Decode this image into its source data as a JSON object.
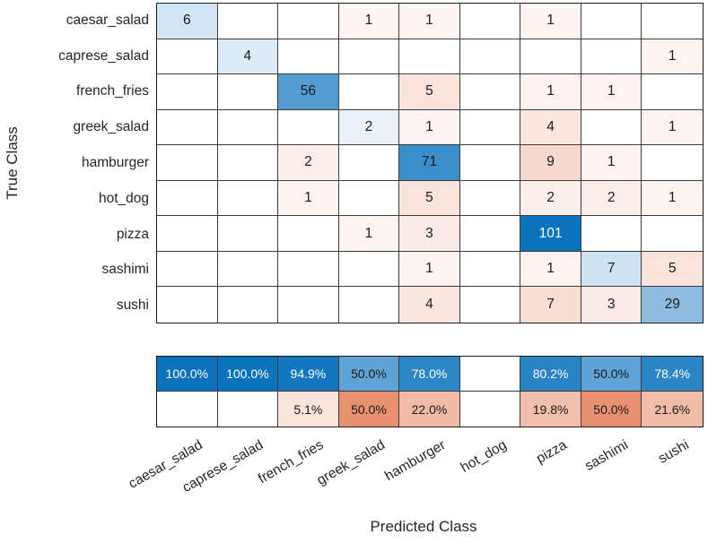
{
  "chart_data": {
    "type": "heatmap",
    "chart_subtype": "confusion_matrix",
    "title": "",
    "xlabel": "Predicted Class",
    "ylabel": "True Class",
    "classes": [
      "caesar_salad",
      "caprese_salad",
      "french_fries",
      "greek_salad",
      "hamburger",
      "hot_dog",
      "pizza",
      "sashimi",
      "sushi"
    ],
    "matrix": [
      [
        6,
        0,
        0,
        1,
        1,
        0,
        1,
        0,
        0
      ],
      [
        0,
        4,
        0,
        0,
        0,
        0,
        0,
        0,
        1
      ],
      [
        0,
        0,
        56,
        0,
        5,
        0,
        1,
        1,
        0
      ],
      [
        0,
        0,
        0,
        2,
        1,
        0,
        4,
        0,
        1
      ],
      [
        0,
        0,
        2,
        0,
        71,
        0,
        9,
        1,
        0
      ],
      [
        0,
        0,
        1,
        0,
        5,
        0,
        2,
        2,
        1
      ],
      [
        0,
        0,
        0,
        1,
        3,
        0,
        101,
        0,
        0
      ],
      [
        0,
        0,
        0,
        0,
        1,
        0,
        1,
        7,
        5
      ],
      [
        0,
        0,
        0,
        0,
        4,
        0,
        7,
        3,
        29
      ]
    ],
    "blank_cells_shown_empty": true,
    "column_summary": {
      "positive_row": [
        "100.0%",
        "100.0%",
        "94.9%",
        "50.0%",
        "78.0%",
        "",
        "80.2%",
        "50.0%",
        "78.4%"
      ],
      "negative_row": [
        "",
        "",
        "5.1%",
        "50.0%",
        "22.0%",
        "",
        "19.8%",
        "50.0%",
        "21.6%"
      ]
    },
    "layout": {
      "grid_on": true,
      "x_tick_rotation_deg": -30,
      "legend": "none"
    },
    "colors": {
      "correct_base_blue": "#0b73bd",
      "incorrect_base_red": "#dc5725",
      "empty_cell": "#ffffff",
      "grid_line": "#3c3c3c",
      "outer_border": "#1a1a1a",
      "text_dark": "#1a1a1a",
      "text_light": "#ffffff"
    }
  }
}
